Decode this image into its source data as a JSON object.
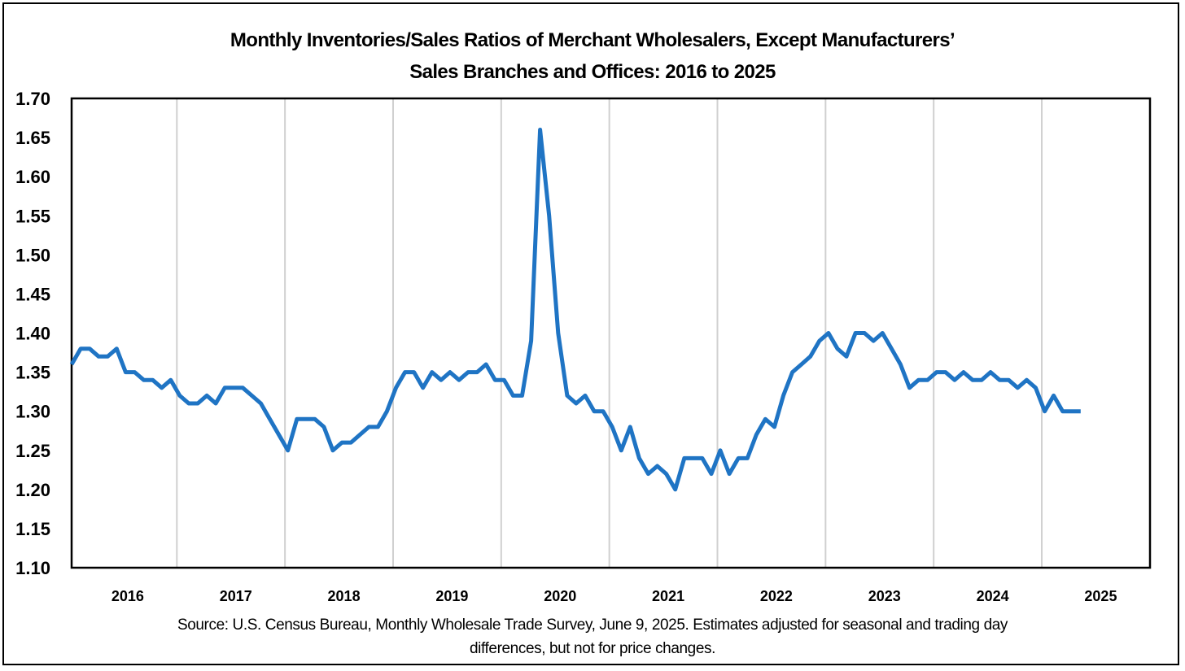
{
  "chart_data": {
    "type": "line",
    "title": "Monthly Inventories/Sales Ratios of Merchant Wholesalers, Except Manufacturers’",
    "subtitle": "Sales Branches and Offices: 2016 to 2025",
    "xlabel": "",
    "ylabel": "",
    "ylim": [
      1.1,
      1.7
    ],
    "yticks": [
      "1.70",
      "1.65",
      "1.60",
      "1.55",
      "1.50",
      "1.45",
      "1.40",
      "1.35",
      "1.30",
      "1.25",
      "1.20",
      "1.15",
      "1.10"
    ],
    "year_labels": [
      "2016",
      "2017",
      "2018",
      "2019",
      "2020",
      "2021",
      "2022",
      "2023",
      "2024",
      "2025"
    ],
    "grid": "vertical gridlines at year boundaries",
    "legend": "none",
    "line_color": "#1f74c4",
    "x_start": "2016-01",
    "series": [
      {
        "values": [
          1.36,
          1.38,
          1.38,
          1.37,
          1.37,
          1.38,
          1.35,
          1.35,
          1.34,
          1.34,
          1.33,
          1.34,
          1.32,
          1.31,
          1.31,
          1.32,
          1.31,
          1.33,
          1.33,
          1.33,
          1.32,
          1.31,
          1.29,
          1.27,
          1.25,
          1.29,
          1.29,
          1.29,
          1.28,
          1.25,
          1.26,
          1.26,
          1.27,
          1.28,
          1.28,
          1.3,
          1.33,
          1.35,
          1.35,
          1.33,
          1.35,
          1.34,
          1.35,
          1.34,
          1.35,
          1.35,
          1.36,
          1.34,
          1.34,
          1.32,
          1.32,
          1.39,
          1.66,
          1.55,
          1.4,
          1.32,
          1.31,
          1.32,
          1.3,
          1.3,
          1.28,
          1.25,
          1.28,
          1.24,
          1.22,
          1.23,
          1.22,
          1.2,
          1.24,
          1.24,
          1.24,
          1.22,
          1.25,
          1.22,
          1.24,
          1.24,
          1.27,
          1.29,
          1.28,
          1.32,
          1.35,
          1.36,
          1.37,
          1.39,
          1.4,
          1.38,
          1.37,
          1.4,
          1.4,
          1.39,
          1.4,
          1.38,
          1.36,
          1.33,
          1.34,
          1.34,
          1.35,
          1.35,
          1.34,
          1.35,
          1.34,
          1.34,
          1.35,
          1.34,
          1.34,
          1.33,
          1.34,
          1.33,
          1.3,
          1.32,
          1.3,
          1.3,
          1.3
        ]
      }
    ]
  },
  "source_line1": "Source: U.S. Census Bureau, Monthly Wholesale Trade Survey, June 9, 2025. Estimates adjusted for seasonal and trading day",
  "source_line2": "differences, but not for price changes."
}
